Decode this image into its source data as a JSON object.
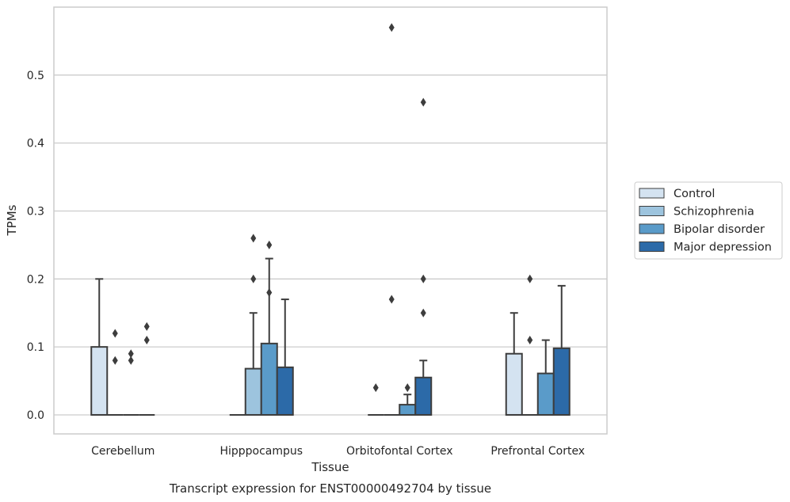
{
  "chart_data": {
    "type": "box",
    "xlabel": "Tissue",
    "ylabel": "TPMs",
    "caption": "Transcript expression for ENST00000492704 by tissue",
    "ylim": [
      -0.028,
      0.6
    ],
    "yticks": [
      0.0,
      0.1,
      0.2,
      0.3,
      0.4,
      0.5
    ],
    "ytick_labels": [
      "0.0",
      "0.1",
      "0.2",
      "0.3",
      "0.4",
      "0.5"
    ],
    "grid": true,
    "legend_position": "right",
    "categories": [
      "Cerebellum",
      "Hipppocampus",
      "Orbitofontal Cortex",
      "Prefrontal Cortex"
    ],
    "series": [
      {
        "name": "Control",
        "color": "#d4e3f1",
        "boxes": [
          {
            "q1": 0.0,
            "median": 0.0,
            "q3": 0.1,
            "whisker_low": 0.0,
            "whisker_high": 0.2,
            "outliers": []
          },
          {
            "q1": 0.0,
            "median": 0.0,
            "q3": 0.0,
            "whisker_low": 0.0,
            "whisker_high": 0.0,
            "outliers": []
          },
          {
            "q1": 0.0,
            "median": 0.0,
            "q3": 0.0,
            "whisker_low": 0.0,
            "whisker_high": 0.0,
            "outliers": [
              0.04
            ]
          },
          {
            "q1": 0.0,
            "median": 0.0,
            "q3": 0.09,
            "whisker_low": 0.0,
            "whisker_high": 0.15,
            "outliers": []
          }
        ]
      },
      {
        "name": "Schizophrenia",
        "color": "#9dc4de",
        "boxes": [
          {
            "q1": 0.0,
            "median": 0.0,
            "q3": 0.0,
            "whisker_low": 0.0,
            "whisker_high": 0.0,
            "outliers": [
              0.08,
              0.12
            ]
          },
          {
            "q1": 0.0,
            "median": 0.0,
            "q3": 0.068,
            "whisker_low": 0.0,
            "whisker_high": 0.15,
            "outliers": [
              0.2,
              0.26
            ]
          },
          {
            "q1": 0.0,
            "median": 0.0,
            "q3": 0.0,
            "whisker_low": 0.0,
            "whisker_high": 0.0,
            "outliers": [
              0.17,
              0.57
            ]
          },
          {
            "q1": 0.0,
            "median": 0.0,
            "q3": 0.0,
            "whisker_low": 0.0,
            "whisker_high": 0.0,
            "outliers": [
              0.11,
              0.2
            ]
          }
        ]
      },
      {
        "name": "Bipolar disorder",
        "color": "#5a9bc9",
        "boxes": [
          {
            "q1": 0.0,
            "median": 0.0,
            "q3": 0.0,
            "whisker_low": 0.0,
            "whisker_high": 0.0,
            "outliers": [
              0.08,
              0.09
            ]
          },
          {
            "q1": 0.0,
            "median": 0.0,
            "q3": 0.105,
            "whisker_low": 0.0,
            "whisker_high": 0.23,
            "outliers": [
              0.18,
              0.25
            ]
          },
          {
            "q1": 0.0,
            "median": 0.0,
            "q3": 0.015,
            "whisker_low": 0.0,
            "whisker_high": 0.03,
            "outliers": [
              0.04
            ]
          },
          {
            "q1": 0.0,
            "median": 0.0,
            "q3": 0.061,
            "whisker_low": 0.0,
            "whisker_high": 0.11,
            "outliers": []
          }
        ]
      },
      {
        "name": "Major depression",
        "color": "#2c6aa8",
        "boxes": [
          {
            "q1": 0.0,
            "median": 0.0,
            "q3": 0.0,
            "whisker_low": 0.0,
            "whisker_high": 0.0,
            "outliers": [
              0.11,
              0.13
            ]
          },
          {
            "q1": 0.0,
            "median": 0.0,
            "q3": 0.07,
            "whisker_low": 0.0,
            "whisker_high": 0.17,
            "outliers": []
          },
          {
            "q1": 0.0,
            "median": 0.0,
            "q3": 0.055,
            "whisker_low": 0.0,
            "whisker_high": 0.08,
            "outliers": [
              0.15,
              0.2,
              0.46
            ]
          },
          {
            "q1": 0.0,
            "median": 0.0,
            "q3": 0.098,
            "whisker_low": 0.0,
            "whisker_high": 0.19,
            "outliers": []
          }
        ]
      }
    ]
  }
}
